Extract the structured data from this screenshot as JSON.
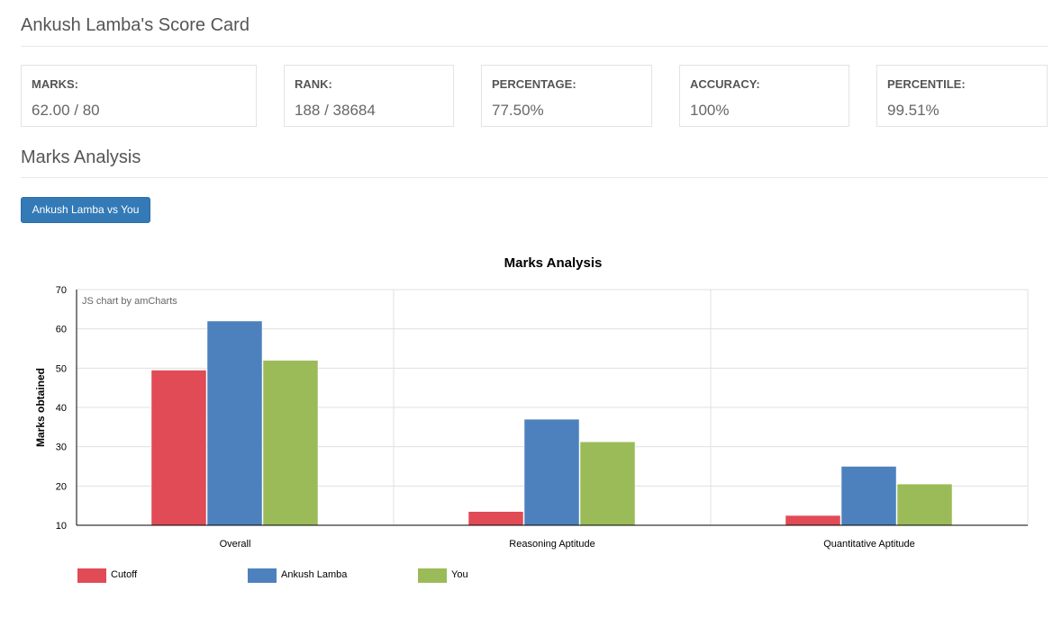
{
  "page": {
    "title": "Ankush Lamba's Score Card",
    "section_title": "Marks Analysis",
    "compare_button": "Ankush Lamba vs You"
  },
  "stats": [
    {
      "label": "MARKS:",
      "value": "62.00 / 80"
    },
    {
      "label": "RANK:",
      "value": "188 / 38684"
    },
    {
      "label": "PERCENTAGE:",
      "value": "77.50%"
    },
    {
      "label": "ACCURACY:",
      "value": "100%"
    },
    {
      "label": "PERCENTILE:",
      "value": "99.51%"
    }
  ],
  "chart_data": {
    "type": "bar",
    "title": "Marks Analysis",
    "ylabel": "Marks obtained",
    "xlabel": "",
    "watermark": "JS chart by amCharts",
    "categories": [
      "Overall",
      "Reasoning Aptitude",
      "Quantitative Aptitude"
    ],
    "series": [
      {
        "name": "Cutoff",
        "color": "#e04b55",
        "values": [
          49.5,
          13.5,
          12.5
        ]
      },
      {
        "name": "Ankush Lamba",
        "color": "#4d81be",
        "values": [
          62,
          37,
          25
        ]
      },
      {
        "name": "You",
        "color": "#9bbb59",
        "values": [
          52,
          31.25,
          20.5
        ]
      }
    ],
    "ylim": [
      10,
      70
    ],
    "yticks": [
      10,
      20,
      30,
      40,
      50,
      60,
      70
    ],
    "grid": true,
    "legend_position": "bottom-left"
  }
}
